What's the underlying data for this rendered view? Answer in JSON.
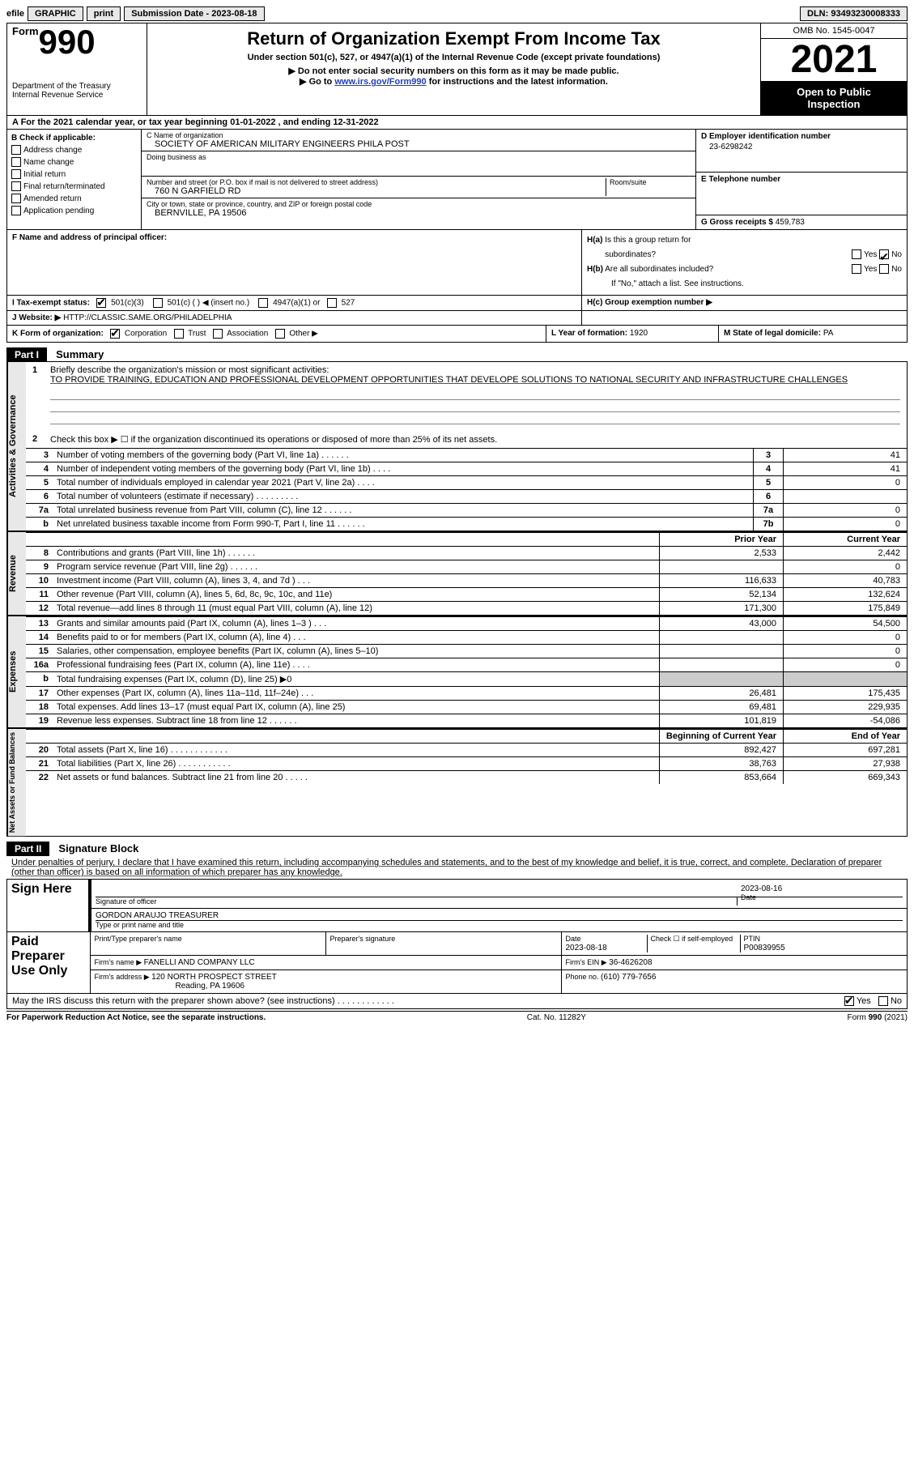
{
  "topbar": {
    "efile_prefix": "efile",
    "graphic_btn": "GRAPHIC",
    "print_btn": "print",
    "submission_label": "Submission Date - ",
    "submission_date": "2023-08-18",
    "dln_label": "DLN: ",
    "dln": "93493230008333"
  },
  "header": {
    "form_word": "Form",
    "form_num": "990",
    "dept_line1": "Department of the Treasury",
    "dept_line2": "Internal Revenue Service",
    "title": "Return of Organization Exempt From Income Tax",
    "subtitle": "Under section 501(c), 527, or 4947(a)(1) of the Internal Revenue Code (except private foundations)",
    "arrow1": "▶ Do not enter social security numbers on this form as it may be made public.",
    "arrow2_prefix": "▶ Go to ",
    "arrow2_link": "www.irs.gov/Form990",
    "arrow2_suffix": " for instructions and the latest information.",
    "omb": "OMB No. 1545-0047",
    "tax_year": "2021",
    "open_public_line1": "Open to Public",
    "open_public_line2": "Inspection"
  },
  "row_a": {
    "prefix": "A For the 2021 calendar year, or tax year beginning ",
    "begin": "01-01-2022",
    "mid": "    , and ending ",
    "end": "12-31-2022"
  },
  "col_b": {
    "header": "B Check if applicable:",
    "opt1": "Address change",
    "opt2": "Name change",
    "opt3": "Initial return",
    "opt4": "Final return/terminated",
    "opt5": "Amended return",
    "opt6": "Application pending"
  },
  "col_c": {
    "name_label": "C Name of organization",
    "name_val": "SOCIETY OF AMERICAN MILITARY ENGINEERS PHILA POST",
    "dba_label": "Doing business as",
    "dba_val": "",
    "street_label": "Number and street (or P.O. box if mail is not delivered to street address)",
    "street_val": "760 N GARFIELD RD",
    "room_label": "Room/suite",
    "room_val": "",
    "city_label": "City or town, state or province, country, and ZIP or foreign postal code",
    "city_val": "BERNVILLE, PA  19506"
  },
  "col_d": {
    "ein_label": "D Employer identification number",
    "ein_val": "23-6298242",
    "phone_label": "E Telephone number",
    "phone_val": "",
    "gross_label": "G Gross receipts $ ",
    "gross_val": "459,783"
  },
  "row_f": {
    "label": "F  Name and address of principal officer:",
    "val": ""
  },
  "row_h": {
    "ha_label": "H(a)  Is this a group return for subordinates?",
    "hb_label": "H(b)  Are all subordinates included?",
    "hb_note": "If \"No,\" attach a list. See instructions.",
    "hc_label": "H(c)  Group exemption number ▶",
    "yes": "Yes",
    "no": "No"
  },
  "row_i": {
    "label": "I    Tax-exempt status:",
    "opt1": "501(c)(3)",
    "opt2": "501(c) (  ) ◀ (insert no.)",
    "opt3": "4947(a)(1) or",
    "opt4": "527"
  },
  "row_j": {
    "label": "J   Website: ▶  ",
    "val": "HTTP://CLASSIC.SAME.ORG/PHILADELPHIA"
  },
  "row_k": {
    "label": "K Form of organization:",
    "opt1": "Corporation",
    "opt2": "Trust",
    "opt3": "Association",
    "opt4": "Other ▶"
  },
  "row_l": {
    "label": "L Year of formation: ",
    "val": "1920"
  },
  "row_m": {
    "label": "M State of legal domicile: ",
    "val": "PA"
  },
  "part1": {
    "bar": "Part I",
    "title": "Summary",
    "side1": "Activities & Governance",
    "side2": "Revenue",
    "side3": "Expenses",
    "side4": "Net Assets or Fund Balances",
    "line1_label": "Briefly describe the organization's mission or most significant activities:",
    "line1_val": "TO PROVIDE TRAINING, EDUCATION AND PROFESSIONAL DEVELOPMENT OPPORTUNITIES THAT DEVELOPE SOLUTIONS TO NATIONAL SECURITY AND INFRASTRUCTURE CHALLENGES",
    "line2": "Check this box ▶ ☐  if the organization discontinued its operations or disposed of more than 25% of its net assets.",
    "prior_hdr": "Prior Year",
    "current_hdr": "Current Year",
    "begin_hdr": "Beginning of Current Year",
    "end_hdr": "End of Year",
    "rows_gov": [
      {
        "n": "3",
        "d": "Number of voting members of the governing body (Part VI, line 1a)   .    .    .    .    .    .",
        "box": "3",
        "v": "41"
      },
      {
        "n": "4",
        "d": "Number of independent voting members of the governing body (Part VI, line 1b)   .    .    .    .",
        "box": "4",
        "v": "41"
      },
      {
        "n": "5",
        "d": "Total number of individuals employed in calendar year 2021 (Part V, line 2a)   .    .    .    .",
        "box": "5",
        "v": "0"
      },
      {
        "n": "6",
        "d": "Total number of volunteers (estimate if necessary)    .    .    .    .    .    .    .    .    .",
        "box": "6",
        "v": ""
      },
      {
        "n": "7a",
        "d": "Total unrelated business revenue from Part VIII, column (C), line 12    .    .    .    .    .    .",
        "box": "7a",
        "v": "0"
      },
      {
        "n": "b",
        "d": "Net unrelated business taxable income from Form 990-T, Part I, line 11    .    .    .    .    .    .",
        "box": "7b",
        "v": "0"
      }
    ],
    "rows_rev": [
      {
        "n": "8",
        "d": "Contributions and grants (Part VIII, line 1h)    .    .    .    .    .    .",
        "p": "2,533",
        "c": "2,442"
      },
      {
        "n": "9",
        "d": "Program service revenue (Part VIII, line 2g)    .    .    .    .    .    .",
        "p": "",
        "c": "0"
      },
      {
        "n": "10",
        "d": "Investment income (Part VIII, column (A), lines 3, 4, and 7d )    .    .    .",
        "p": "116,633",
        "c": "40,783"
      },
      {
        "n": "11",
        "d": "Other revenue (Part VIII, column (A), lines 5, 6d, 8c, 9c, 10c, and 11e)",
        "p": "52,134",
        "c": "132,624"
      },
      {
        "n": "12",
        "d": "Total revenue—add lines 8 through 11 (must equal Part VIII, column (A), line 12)",
        "p": "171,300",
        "c": "175,849"
      }
    ],
    "rows_exp": [
      {
        "n": "13",
        "d": "Grants and similar amounts paid (Part IX, column (A), lines 1–3 )   .    .    .",
        "p": "43,000",
        "c": "54,500"
      },
      {
        "n": "14",
        "d": "Benefits paid to or for members (Part IX, column (A), line 4)   .    .    .",
        "p": "",
        "c": "0"
      },
      {
        "n": "15",
        "d": "Salaries, other compensation, employee benefits (Part IX, column (A), lines 5–10)",
        "p": "",
        "c": "0"
      },
      {
        "n": "16a",
        "d": "Professional fundraising fees (Part IX, column (A), line 11e)   .    .    .    .",
        "p": "",
        "c": "0"
      },
      {
        "n": "b",
        "d": "Total fundraising expenses (Part IX, column (D), line 25) ▶0",
        "p": "shade",
        "c": "shade"
      },
      {
        "n": "17",
        "d": "Other expenses (Part IX, column (A), lines 11a–11d, 11f–24e)    .    .    .",
        "p": "26,481",
        "c": "175,435"
      },
      {
        "n": "18",
        "d": "Total expenses. Add lines 13–17 (must equal Part IX, column (A), line 25)",
        "p": "69,481",
        "c": "229,935"
      },
      {
        "n": "19",
        "d": "Revenue less expenses. Subtract line 18 from line 12   .    .    .    .    .    .",
        "p": "101,819",
        "c": "-54,086"
      }
    ],
    "rows_net": [
      {
        "n": "20",
        "d": "Total assets (Part X, line 16)   .    .    .    .    .    .    .    .    .    .    .    .",
        "p": "892,427",
        "c": "697,281"
      },
      {
        "n": "21",
        "d": "Total liabilities (Part X, line 26)   .    .    .    .    .    .    .    .    .    .    .",
        "p": "38,763",
        "c": "27,938"
      },
      {
        "n": "22",
        "d": "Net assets or fund balances. Subtract line 21 from line 20   .    .    .    .    .",
        "p": "853,664",
        "c": "669,343"
      }
    ]
  },
  "part2": {
    "bar": "Part II",
    "title": "Signature Block",
    "declaration": "Under penalties of perjury, I declare that I have examined this return, including accompanying schedules and statements, and to the best of my knowledge and belief, it is true, correct, and complete. Declaration of preparer (other than officer) is based on all information of which preparer has any knowledge.",
    "sign_here": "Sign Here",
    "sig_officer_label": "Signature of officer",
    "sig_date_val": "2023-08-16",
    "sig_date_label": "Date",
    "sig_name_val": "GORDON ARAUJO  TREASURER",
    "sig_name_label": "Type or print name and title",
    "paid_prep": "Paid Preparer Use Only",
    "prep_name_label": "Print/Type preparer's name",
    "prep_name_val": "",
    "prep_sig_label": "Preparer's signature",
    "prep_date_label": "Date",
    "prep_date_val": "2023-08-18",
    "prep_check_label": "Check ☐ if self-employed",
    "ptin_label": "PTIN",
    "ptin_val": "P00839955",
    "firm_name_label": "Firm's name      ▶ ",
    "firm_name_val": "FANELLI AND COMPANY LLC",
    "firm_ein_label": "Firm's EIN ▶ ",
    "firm_ein_val": "36-4626208",
    "firm_addr_label": "Firm's address ▶ ",
    "firm_addr_val1": "120 NORTH PROSPECT STREET",
    "firm_addr_val2": "Reading, PA  19606",
    "firm_phone_label": "Phone no. ",
    "firm_phone_val": "(610) 779-7656",
    "may_irs": "May the IRS discuss this return with the preparer shown above? (see instructions)    .    .    .    .    .    .    .    .    .    .    .    .",
    "yes": "Yes",
    "no": "No"
  },
  "footer": {
    "left": "For Paperwork Reduction Act Notice, see the separate instructions.",
    "center": "Cat. No. 11282Y",
    "right": "Form 990 (2021)"
  }
}
